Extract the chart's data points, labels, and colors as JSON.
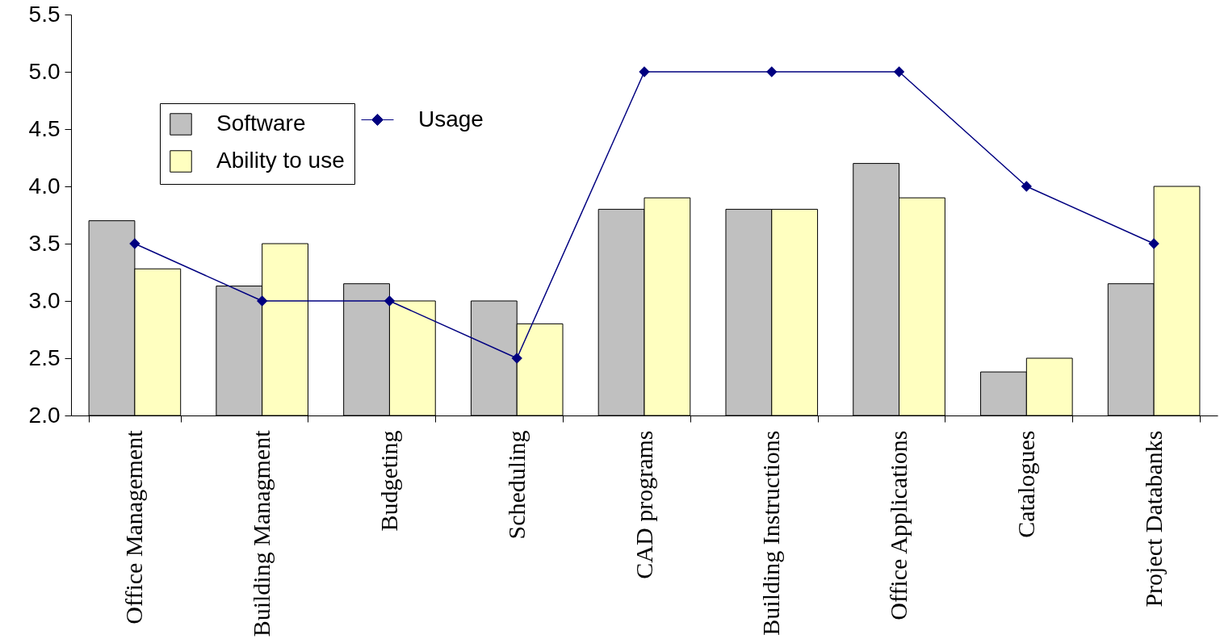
{
  "chart_data": {
    "type": "bar",
    "categories": [
      "Office Management",
      "Building Managment",
      "Budgeting",
      "Scheduling",
      "CAD programs",
      "Building Instructions",
      "Office Applications",
      "Catalogues",
      "Project Databanks"
    ],
    "series": [
      {
        "name": "Software",
        "color": "#c0c0c0",
        "values": [
          3.7,
          3.13,
          3.15,
          3.0,
          3.8,
          3.8,
          4.2,
          2.38,
          3.15
        ]
      },
      {
        "name": "Ability to use",
        "color": "#ffffc0",
        "values": [
          3.28,
          3.5,
          3.0,
          2.8,
          3.9,
          3.8,
          3.9,
          2.5,
          4.0
        ]
      },
      {
        "name": "Usage",
        "type": "line",
        "color": "#000080",
        "marker": "diamond",
        "values": [
          3.5,
          3.0,
          3.0,
          2.5,
          5.0,
          5.0,
          5.0,
          4.0,
          3.5
        ]
      }
    ],
    "ylim": [
      2,
      5.5
    ],
    "yticks": [
      {
        "value": 2,
        "label": "2.0"
      },
      {
        "value": 2.5,
        "label": "2.5"
      },
      {
        "value": 3,
        "label": "3.0"
      },
      {
        "value": 3.5,
        "label": "3.5"
      },
      {
        "value": 4,
        "label": "4.0"
      },
      {
        "value": 4.5,
        "label": "4.5"
      },
      {
        "value": 5,
        "label": "5.0"
      },
      {
        "value": 5.5,
        "label": "5.5"
      }
    ],
    "grid": false,
    "legend": "top left"
  }
}
